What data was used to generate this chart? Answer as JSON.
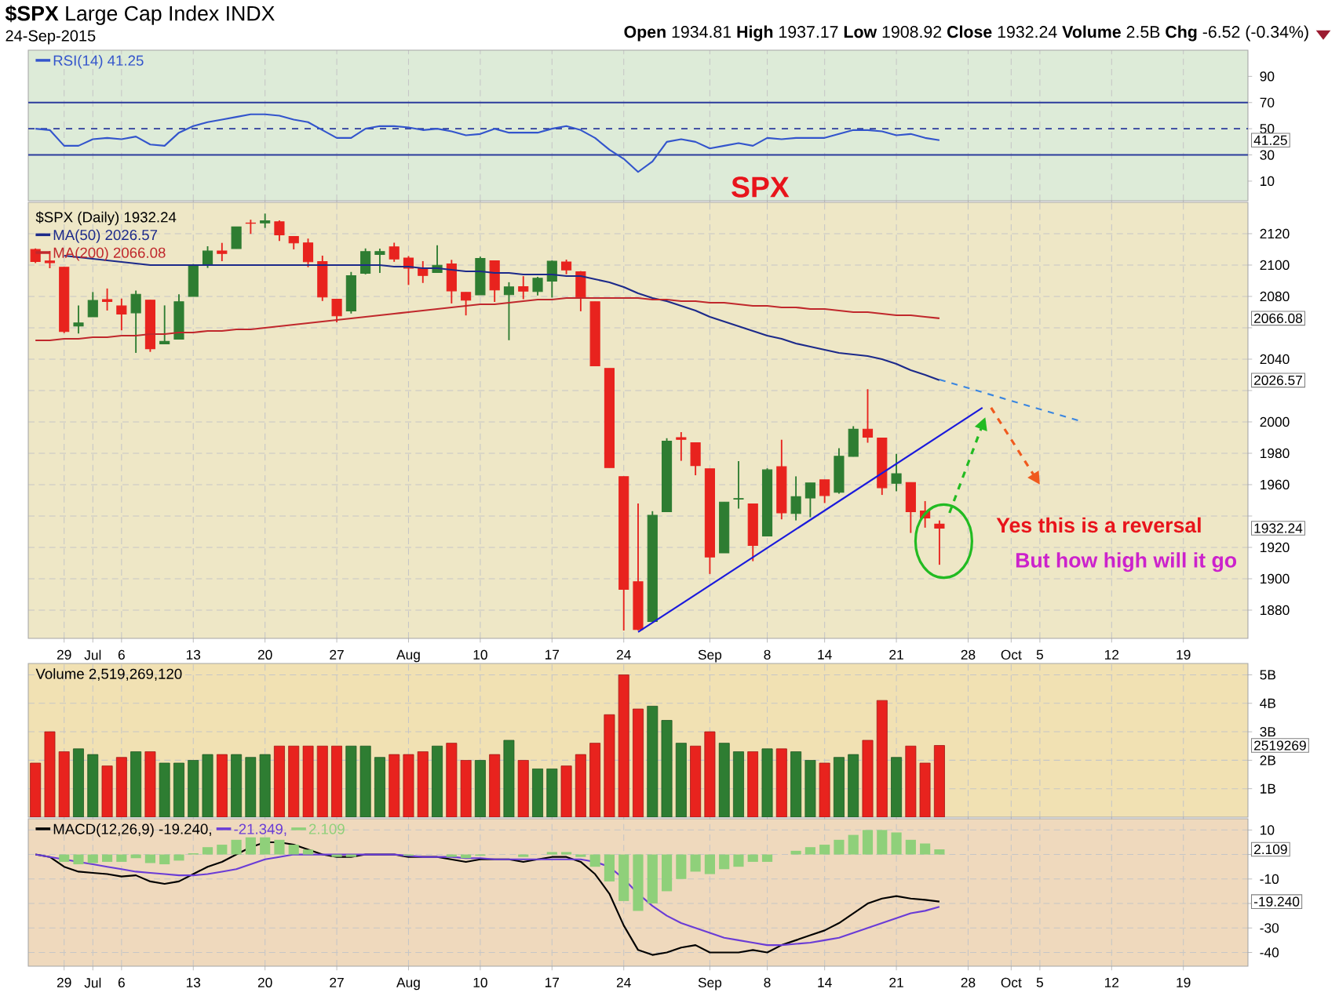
{
  "chart_data": [
    {
      "type": "line",
      "title": "**$SPX** Large Cap Index INDX",
      "subtitle": "24-Sep-2015",
      "annotations": [
        "**Open** 1934.81 **High** 1937.17 **Low** 1908.92 **Close** 1932.24 **Volume** 2.5B **Chg** -6.52 (-0.34%)",
        "41.25"
      ],
      "categories": [
        null,
        null,
        null,
        null,
        null,
        null,
        null,
        null,
        null,
        null,
        null,
        null,
        null,
        null,
        null,
        null,
        null,
        null,
        null,
        null,
        null,
        null,
        null,
        null,
        null,
        null,
        null,
        null,
        null,
        null,
        null,
        null,
        null,
        null,
        null,
        null,
        null,
        null,
        null,
        null,
        null,
        null,
        null,
        null,
        null,
        null,
        null,
        null,
        null,
        null,
        null,
        null,
        null,
        null,
        null,
        null,
        null,
        null,
        null,
        null,
        null,
        null,
        null,
        null,
        null,
        null,
        null,
        null,
        null,
        null,
        null,
        null,
        null,
        null,
        null,
        null,
        null,
        null,
        null,
        null,
        null,
        null,
        null,
        null,
        null
      ],
      "series": [
        {
          "name": "RSI(14) 41.25",
          "color": "#3355cc",
          "values": [
            50,
            49,
            37,
            37,
            42,
            43,
            42,
            44,
            38,
            37,
            47,
            52,
            55,
            57,
            59,
            61,
            61,
            60,
            57,
            55,
            49,
            43,
            43,
            50,
            52,
            52,
            51,
            49,
            50,
            48,
            45,
            46,
            50,
            47,
            47,
            47,
            50,
            52,
            49,
            43,
            34,
            27,
            17,
            25,
            40,
            42,
            40,
            35,
            37,
            39,
            37,
            43,
            42,
            43,
            43,
            43,
            46,
            49,
            49,
            48,
            45,
            46,
            43,
            41.25,
            null,
            null,
            null,
            null,
            null,
            null,
            null,
            null,
            null,
            null,
            null,
            null,
            null,
            null,
            null,
            null,
            null,
            null,
            null,
            null,
            null
          ]
        }
      ],
      "ref_lines": [
        {
          "axis": "y",
          "value": 70,
          "color": "#2b3b9c"
        },
        {
          "axis": "y",
          "value": 50,
          "color": "#2b3b9c",
          "line_style": "dashed"
        },
        {
          "axis": "y",
          "value": 30,
          "color": "#2b3b9c"
        }
      ],
      "ylim": [
        -5,
        110
      ],
      "yticks": [
        10,
        30,
        50,
        70,
        90
      ],
      "grid": "x",
      "legend": "top left",
      "tick_labels": "y"
    },
    {
      "type": "candlestick",
      "annotations": [
        "SPX",
        "Yes this is a reversal",
        "But how high will it go",
        "2066.08",
        "2026.57",
        "1932.24"
      ],
      "categories": [
        null,
        null,
        "29",
        null,
        "Jul",
        null,
        "6",
        null,
        null,
        null,
        null,
        "13",
        null,
        null,
        null,
        null,
        "20",
        null,
        null,
        null,
        null,
        "27",
        null,
        null,
        null,
        null,
        "Aug",
        null,
        null,
        null,
        null,
        "10",
        null,
        null,
        null,
        null,
        "17",
        null,
        null,
        null,
        null,
        "24",
        null,
        null,
        null,
        null,
        null,
        "Sep",
        null,
        null,
        null,
        "8",
        null,
        null,
        null,
        "14",
        null,
        null,
        null,
        null,
        "21",
        null,
        null,
        null,
        null,
        "28",
        null,
        null,
        "Oct",
        null,
        "5",
        null,
        null,
        null,
        null,
        "12",
        null,
        null,
        null,
        null,
        "19",
        null,
        null,
        null,
        null
      ],
      "series": [
        {
          "name": "$SPX (Daily) 1932.24",
          "type": "candlestick",
          "ohlc": [
            [
              2109.96,
              2110.61,
              2101.3,
              2102.31
            ],
            [
              2102.62,
              2108.92,
              2098.0,
              2101.49
            ],
            [
              2098.63,
              2098.63,
              2056.64,
              2057.64
            ],
            [
              2061.19,
              2074.28,
              2056.32,
              2063.11
            ],
            [
              2067.0,
              2082.78,
              2067.0,
              2077.42
            ],
            [
              2078.03,
              2085.06,
              2071.02,
              2076.78
            ],
            [
              2073.95,
              2078.61,
              2058.4,
              2068.76
            ],
            [
              2069.52,
              2083.74,
              2044.02,
              2081.34
            ],
            [
              2077.66,
              2077.66,
              2044.66,
              2046.68
            ],
            [
              2049.73,
              2074.28,
              2049.73,
              2051.31
            ],
            [
              2052.74,
              2081.31,
              2052.74,
              2076.62
            ],
            [
              2080.03,
              2100.67,
              2080.03,
              2099.6
            ],
            [
              2099.72,
              2111.98,
              2098.18,
              2108.95
            ],
            [
              2109.01,
              2114.14,
              2102.49,
              2107.4
            ],
            [
              2110.55,
              2124.42,
              2110.55,
              2124.29
            ],
            [
              2126.8,
              2128.91,
              2119.88,
              2126.64
            ],
            [
              2126.85,
              2132.82,
              2123.66,
              2128.28
            ],
            [
              2127.55,
              2128.49,
              2115.4,
              2119.21
            ],
            [
              2118.21,
              2118.51,
              2110.0,
              2114.15
            ],
            [
              2114.16,
              2116.87,
              2098.63,
              2102.15
            ],
            [
              2102.24,
              2106.01,
              2077.09,
              2079.65
            ],
            [
              2078.19,
              2078.19,
              2063.52,
              2067.64
            ],
            [
              2070.75,
              2095.6,
              2069.09,
              2093.25
            ],
            [
              2094.7,
              2110.6,
              2094.08,
              2108.57
            ],
            [
              2106.78,
              2110.48,
              2094.97,
              2108.63
            ],
            [
              2111.6,
              2114.24,
              2102.07,
              2103.84
            ],
            [
              2104.49,
              2105.7,
              2087.31,
              2098.04
            ],
            [
              2097.68,
              2102.51,
              2088.6,
              2093.32
            ],
            [
              2095.27,
              2112.66,
              2095.27,
              2099.84
            ],
            [
              2100.75,
              2103.32,
              2075.53,
              2083.56
            ],
            [
              2082.61,
              2082.61,
              2067.91,
              2077.57
            ],
            [
              2080.98,
              2105.35,
              2080.98,
              2104.18
            ],
            [
              2102.66,
              2102.66,
              2076.49,
              2084.07
            ],
            [
              2081.1,
              2089.06,
              2052.09,
              2086.05
            ],
            [
              2086.19,
              2092.93,
              2078.26,
              2083.39
            ],
            [
              2083.15,
              2092.45,
              2080.61,
              2091.54
            ],
            [
              2089.7,
              2102.87,
              2079.3,
              2102.44
            ],
            [
              2101.99,
              2103.47,
              2094.14,
              2096.92
            ],
            [
              2095.69,
              2096.17,
              2070.53,
              2079.61
            ],
            [
              2076.61,
              2076.61,
              2035.73,
              2035.73
            ],
            [
              2034.08,
              2034.08,
              1970.89,
              1970.89
            ],
            [
              1965.15,
              1965.15,
              1867.01,
              1893.21
            ],
            [
              1898.08,
              1948.04,
              1867.08,
              1867.61
            ],
            [
              1872.75,
              1943.09,
              1872.75,
              1940.51
            ],
            [
              1942.77,
              1989.6,
              1942.77,
              1987.66
            ],
            [
              1990.0,
              1993.48,
              1975.19,
              1988.87
            ],
            [
              1986.73,
              1986.73,
              1965.98,
              1972.18
            ],
            [
              1970.09,
              1970.09,
              1903.07,
              1913.85
            ],
            [
              1916.52,
              1948.91,
              1916.52,
              1948.86
            ],
            [
              1950.79,
              1975.01,
              1944.72,
              1951.13
            ],
            [
              1947.76,
              1947.76,
              1911.21,
              1921.22
            ],
            [
              1927.3,
              1970.42,
              1927.3,
              1969.41
            ],
            [
              1971.45,
              1988.63,
              1937.88,
              1942.04
            ],
            [
              1941.59,
              1965.29,
              1937.19,
              1952.29
            ],
            [
              1951.45,
              1961.05,
              1939.19,
              1961.05
            ],
            [
              1963.06,
              1963.06,
              1948.27,
              1953.03
            ],
            [
              1955.1,
              1983.19,
              1954.3,
              1978.09
            ],
            [
              1978.02,
              1997.26,
              1977.93,
              1995.31
            ],
            [
              1995.33,
              2020.86,
              1986.73,
              1990.2
            ],
            [
              1989.66,
              1989.66,
              1953.45,
              1958.03
            ],
            [
              1960.84,
              1979.64,
              1955.8,
              1966.97
            ],
            [
              1961.39,
              1961.39,
              1929.22,
              1942.74
            ],
            [
              1943.24,
              1949.52,
              1932.57,
              1938.76
            ],
            [
              1934.81,
              1937.17,
              1908.92,
              1932.24
            ],
            null,
            null,
            null,
            null,
            null,
            null,
            null,
            null,
            null,
            null,
            null,
            null,
            null,
            null,
            null,
            null,
            null,
            null,
            null,
            null,
            null
          ],
          "colors": [
            "#e8231e",
            "#e8231e",
            "#e8231e",
            "#2e7d32",
            "#2e7d32",
            "#e8231e",
            "#e8231e",
            "#2e7d32",
            "#e8231e",
            "#2e7d32",
            "#2e7d32",
            "#2e7d32",
            "#2e7d32",
            "#e8231e",
            "#2e7d32",
            "#e8231e",
            "#2e7d32",
            "#e8231e",
            "#e8231e",
            "#e8231e",
            "#e8231e",
            "#e8231e",
            "#2e7d32",
            "#2e7d32",
            "#2e7d32",
            "#e8231e",
            "#e8231e",
            "#e8231e",
            "#2e7d32",
            "#e8231e",
            "#e8231e",
            "#2e7d32",
            "#e8231e",
            "#2e7d32",
            "#e8231e",
            "#2e7d32",
            "#2e7d32",
            "#e8231e",
            "#e8231e",
            "#e8231e",
            "#e8231e",
            "#e8231e",
            "#e8231e",
            "#2e7d32",
            "#2e7d32",
            "#e8231e",
            "#e8231e",
            "#e8231e",
            "#2e7d32",
            "#2e7d32",
            "#e8231e",
            "#2e7d32",
            "#e8231e",
            "#2e7d32",
            "#2e7d32",
            "#e8231e",
            "#2e7d32",
            "#2e7d32",
            "#e8231e",
            "#e8231e",
            "#2e7d32",
            "#e8231e",
            "#e8231e",
            "#e8231e",
            null,
            null,
            null,
            null,
            null,
            null,
            null,
            null,
            null,
            null,
            null,
            null,
            null,
            null,
            null,
            null,
            null,
            null,
            null,
            null,
            null
          ]
        },
        {
          "name": "MA(50) 2026.57",
          "type": "line",
          "color": "#1c2a8a",
          "values": [
            null,
            null,
            2106,
            2105,
            2104,
            2103,
            2102,
            2101,
            2100,
            2100,
            2100,
            2100,
            2100,
            2100,
            2100,
            2100,
            2100,
            2100,
            2100,
            2100,
            2100,
            2100,
            2100,
            2100,
            2100,
            2099,
            2099,
            2098,
            2098,
            2097,
            2096,
            2096,
            2095,
            2095,
            2094,
            2094,
            2094,
            2093,
            2093,
            2091,
            2089,
            2086,
            2082,
            2079,
            2077,
            2074,
            2071,
            2067,
            2064,
            2061,
            2058,
            2055,
            2053,
            2050,
            2048,
            2046,
            2044,
            2043,
            2042,
            2040,
            2037,
            2033,
            2030,
            2026.57,
            null,
            null,
            null,
            null,
            null,
            null,
            null,
            null,
            null,
            null,
            null,
            null,
            null,
            null,
            null,
            null,
            null,
            null,
            null,
            null,
            null
          ]
        },
        {
          "name": "MA(200) 2066.08",
          "type": "line",
          "color": "#c0282c",
          "values": [
            2052,
            2052,
            2053,
            2053,
            2054,
            2054,
            2055,
            2055,
            2056,
            2056,
            2057,
            2057,
            2058,
            2058,
            2059,
            2059,
            2060,
            2061,
            2062,
            2063,
            2064,
            2065,
            2066,
            2067,
            2068,
            2069,
            2070,
            2071,
            2072,
            2073,
            2074,
            2075,
            2075,
            2076,
            2077,
            2078,
            2078,
            2079,
            2079,
            2079,
            2079,
            2079,
            2079,
            2078,
            2078,
            2077,
            2077,
            2076,
            2076,
            2075,
            2074,
            2074,
            2073,
            2073,
            2072,
            2072,
            2071,
            2070,
            2070,
            2069,
            2068,
            2068,
            2067,
            2066.08,
            null,
            null,
            null,
            null,
            null,
            null,
            null,
            null,
            null,
            null,
            null,
            null,
            null,
            null,
            null,
            null,
            null,
            null,
            null,
            null,
            null
          ]
        },
        {
          "type": "line",
          "color": "#1a1adc",
          "values": [
            null,
            null,
            null,
            null,
            null,
            null,
            null,
            null,
            null,
            null,
            null,
            null,
            null,
            null,
            null,
            null,
            null,
            null,
            null,
            null,
            null,
            null,
            null,
            null,
            null,
            null,
            null,
            null,
            null,
            null,
            null,
            null,
            null,
            null,
            null,
            null,
            null,
            null,
            null,
            null,
            null,
            null,
            1866,
            null,
            null,
            null,
            null,
            null,
            null,
            null,
            null,
            null,
            null,
            null,
            null,
            null,
            null,
            null,
            null,
            null,
            null,
            null,
            null,
            null,
            null,
            null,
            2009,
            null,
            null,
            null,
            null,
            null,
            null,
            null,
            null,
            null,
            null,
            null,
            null,
            null,
            null,
            null,
            null,
            null,
            null
          ]
        },
        {
          "type": "line",
          "color": "#3a86e0",
          "line_style": "dashed",
          "values": [
            null,
            null,
            null,
            null,
            null,
            null,
            null,
            null,
            null,
            null,
            null,
            null,
            null,
            null,
            null,
            null,
            null,
            null,
            null,
            null,
            null,
            null,
            null,
            null,
            null,
            null,
            null,
            null,
            null,
            null,
            null,
            null,
            null,
            null,
            null,
            null,
            null,
            null,
            null,
            null,
            null,
            null,
            null,
            null,
            null,
            null,
            null,
            null,
            null,
            null,
            null,
            null,
            null,
            null,
            null,
            null,
            null,
            null,
            null,
            null,
            null,
            null,
            null,
            2027,
            null,
            null,
            null,
            null,
            null,
            null,
            null,
            null,
            null,
            2000,
            null,
            null,
            null,
            null,
            null,
            null,
            null,
            null,
            null,
            null,
            null
          ]
        }
      ],
      "ylim": [
        1862,
        2140
      ],
      "yticks": [
        2120,
        2100,
        2080,
        {
          "value": 2060,
          "label": null
        },
        2040,
        {
          "value": 2020,
          "label": null
        },
        2000,
        1980,
        1960,
        {
          "value": 1940,
          "label": null
        },
        1920,
        1900,
        1880
      ],
      "grid": true,
      "legend": "top left"
    },
    {
      "type": "bar",
      "annotations": [
        "2519269"
      ],
      "categories": [
        null,
        null,
        null,
        null,
        null,
        null,
        null,
        null,
        null,
        null,
        null,
        null,
        null,
        null,
        null,
        null,
        null,
        null,
        null,
        null,
        null,
        null,
        null,
        null,
        null,
        null,
        null,
        null,
        null,
        null,
        null,
        null,
        null,
        null,
        null,
        null,
        null,
        null,
        null,
        null,
        null,
        null,
        null,
        null,
        null,
        null,
        null,
        null,
        null,
        null,
        null,
        null,
        null,
        null,
        null,
        null,
        null,
        null,
        null,
        null,
        null,
        null,
        null,
        null,
        null,
        null,
        null,
        null,
        null,
        null,
        null,
        null,
        null,
        null,
        null,
        null,
        null,
        null,
        null,
        null,
        null,
        null,
        null,
        null,
        null
      ],
      "series": [
        {
          "name": "Volume 2,519,269,120",
          "values": [
            1.9,
            3.0,
            2.3,
            2.4,
            2.2,
            1.8,
            2.1,
            2.3,
            2.3,
            1.9,
            1.9,
            2.0,
            2.2,
            2.2,
            2.2,
            2.1,
            2.2,
            2.5,
            2.5,
            2.5,
            2.5,
            2.5,
            2.5,
            2.5,
            2.1,
            2.2,
            2.2,
            2.3,
            2.5,
            2.6,
            2.0,
            2.0,
            2.2,
            2.7,
            2.0,
            1.7,
            1.7,
            1.8,
            2.2,
            2.6,
            3.6,
            5.0,
            3.8,
            3.9,
            3.4,
            2.6,
            2.5,
            3.0,
            2.6,
            2.3,
            2.3,
            2.4,
            2.4,
            2.3,
            2.0,
            1.9,
            2.1,
            2.2,
            2.7,
            4.1,
            2.1,
            2.5,
            1.9,
            2.52,
            null,
            null,
            null,
            null,
            null,
            null,
            null,
            null,
            null,
            null,
            null,
            null,
            null,
            null,
            null,
            null,
            null,
            null,
            null,
            null,
            null
          ],
          "colors": [
            "#e8231e",
            "#e8231e",
            "#e8231e",
            "#2e7d32",
            "#2e7d32",
            "#e8231e",
            "#e8231e",
            "#2e7d32",
            "#e8231e",
            "#2e7d32",
            "#2e7d32",
            "#2e7d32",
            "#2e7d32",
            "#e8231e",
            "#2e7d32",
            "#2e7d32",
            "#2e7d32",
            "#e8231e",
            "#e8231e",
            "#e8231e",
            "#e8231e",
            "#e8231e",
            "#2e7d32",
            "#2e7d32",
            "#2e7d32",
            "#e8231e",
            "#e8231e",
            "#e8231e",
            "#2e7d32",
            "#e8231e",
            "#e8231e",
            "#2e7d32",
            "#e8231e",
            "#2e7d32",
            "#e8231e",
            "#2e7d32",
            "#2e7d32",
            "#e8231e",
            "#e8231e",
            "#e8231e",
            "#e8231e",
            "#e8231e",
            "#e8231e",
            "#2e7d32",
            "#2e7d32",
            "#2e7d32",
            "#e8231e",
            "#e8231e",
            "#2e7d32",
            "#2e7d32",
            "#e8231e",
            "#2e7d32",
            "#e8231e",
            "#2e7d32",
            "#2e7d32",
            "#e8231e",
            "#2e7d32",
            "#2e7d32",
            "#e8231e",
            "#e8231e",
            "#2e7d32",
            "#e8231e",
            "#e8231e",
            "#e8231e",
            null,
            null,
            null,
            null,
            null,
            null,
            null,
            null,
            null,
            null,
            null,
            null,
            null,
            null,
            null,
            null,
            null,
            null,
            null,
            null,
            null
          ]
        }
      ],
      "ylim": [
        0,
        5.4
      ],
      "yticks": [
        {
          "value": 1,
          "label": "1B"
        },
        {
          "value": 2,
          "label": "2B"
        },
        {
          "value": 3,
          "label": "3B"
        },
        {
          "value": 4,
          "label": "4B"
        },
        {
          "value": 5,
          "label": "5B"
        }
      ],
      "grid": true,
      "legend": "top left",
      "tick_labels": "y"
    },
    {
      "type": "line",
      "annotations": [
        "2.109",
        "-19.240"
      ],
      "categories": [
        null,
        null,
        "29",
        null,
        "Jul",
        null,
        "6",
        null,
        null,
        null,
        null,
        "13",
        null,
        null,
        null,
        null,
        "20",
        null,
        null,
        null,
        null,
        "27",
        null,
        null,
        null,
        null,
        "Aug",
        null,
        null,
        null,
        null,
        "10",
        null,
        null,
        null,
        null,
        "17",
        null,
        null,
        null,
        null,
        "24",
        null,
        null,
        null,
        null,
        null,
        "Sep",
        null,
        null,
        null,
        "8",
        null,
        null,
        null,
        "14",
        null,
        null,
        null,
        null,
        "21",
        null,
        null,
        null,
        null,
        "28",
        null,
        null,
        "Oct",
        null,
        "5",
        null,
        null,
        null,
        null,
        "12",
        null,
        null,
        null,
        null,
        "19",
        null,
        null,
        null,
        null
      ],
      "series": [
        {
          "name": "MACD(12,26,9) -19.240,",
          "color": "#000000",
          "values": [
            0,
            -1,
            -5,
            -7,
            -7.5,
            -8,
            -9,
            -8.5,
            -11,
            -12,
            -11,
            -8,
            -5,
            -3,
            0,
            3,
            5,
            5,
            4,
            2,
            0,
            -1,
            -1,
            0,
            0,
            0,
            -1,
            -1,
            -1,
            -2,
            -3,
            -2,
            -2,
            -2,
            -3,
            -2,
            -1,
            -1,
            -3,
            -8,
            -16,
            -29,
            -39,
            -41,
            -40,
            -38,
            -37,
            -40,
            -40,
            -40,
            -39,
            -40,
            -37,
            -35,
            -33,
            -31,
            -28,
            -24,
            -20,
            -18,
            -17,
            -18,
            -18.5,
            -19.24,
            null,
            null,
            null,
            null,
            null,
            null,
            null,
            null,
            null,
            null,
            null,
            null,
            null,
            null,
            null,
            null,
            null,
            null,
            null,
            null,
            null
          ]
        },
        {
          "name": "-21.349,",
          "color": "#6a3cd6",
          "values": [
            0,
            -1,
            -2,
            -3,
            -4,
            -5,
            -6,
            -7,
            -7.5,
            -8,
            -8.5,
            -8.5,
            -8,
            -7,
            -6,
            -4,
            -2,
            -1,
            0,
            0,
            0,
            0,
            0,
            0,
            0,
            0,
            -0.5,
            -1,
            -1,
            -1,
            -1.5,
            -1.5,
            -2,
            -2,
            -2,
            -2,
            -2,
            -2,
            -2,
            -3,
            -5,
            -10,
            -16,
            -21,
            -25,
            -28,
            -30,
            -32,
            -34,
            -35,
            -36,
            -37,
            -37,
            -36.5,
            -36,
            -35,
            -34,
            -32,
            -30,
            -28,
            -26,
            -24,
            -23,
            -21.349,
            null,
            null,
            null,
            null,
            null,
            null,
            null,
            null,
            null,
            null,
            null,
            null,
            null,
            null,
            null,
            null,
            null,
            null,
            null,
            null,
            null
          ]
        },
        {
          "name": "2.109",
          "type": "bar",
          "color": "#8fd07a",
          "values": [
            0,
            0,
            -3,
            -4,
            -3.5,
            -3,
            -3,
            -1.5,
            -3.5,
            -4,
            -2.5,
            0.5,
            3,
            4,
            6,
            7,
            7,
            6,
            4,
            2,
            0,
            -1,
            -1,
            0,
            0,
            0,
            -0.5,
            0,
            0,
            -1,
            -1.5,
            -0.5,
            0,
            0,
            -1,
            0,
            1,
            1,
            -1,
            -5,
            -11,
            -19,
            -23,
            -20,
            -15,
            -10,
            -7,
            -8,
            -6,
            -5,
            -3,
            -3,
            0,
            1.5,
            3,
            4,
            6,
            8,
            10,
            10,
            9,
            6,
            4.5,
            2.109,
            null,
            null,
            null,
            null,
            null,
            null,
            null,
            null,
            null,
            null,
            null,
            null,
            null,
            null,
            null,
            null,
            null,
            null,
            null,
            null,
            null
          ]
        }
      ],
      "ylim": [
        -45.6,
        14.6
      ],
      "yticks": [
        10,
        {
          "value": 0,
          "label": null
        },
        -10,
        {
          "value": -20,
          "label": null
        },
        -30,
        -40
      ],
      "grid": true,
      "legend": "top left"
    }
  ]
}
